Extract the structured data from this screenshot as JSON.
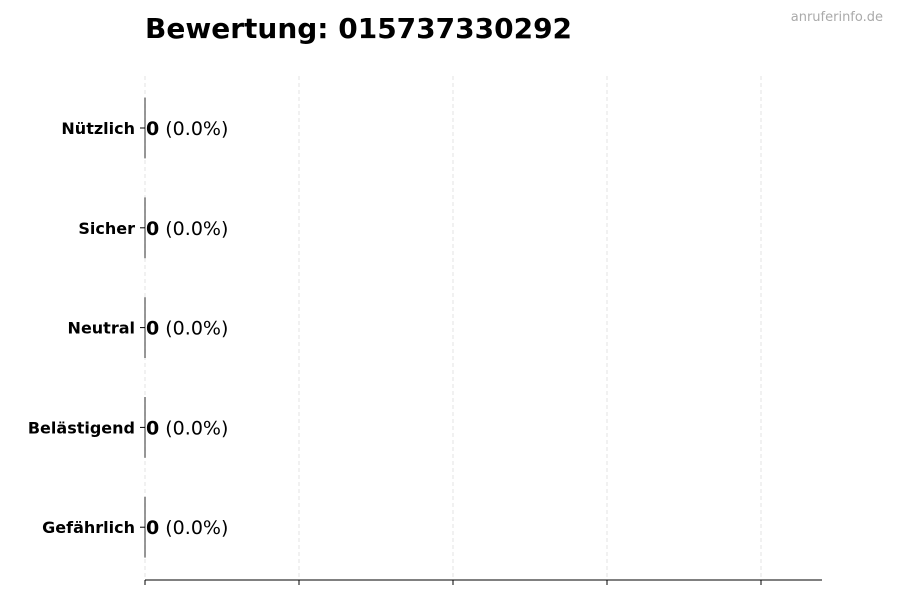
{
  "watermark": "anruferinfo.de",
  "chart_data": {
    "type": "bar",
    "orientation": "horizontal",
    "title": "Bewertung: 015737330292",
    "categories": [
      "Nützlich",
      "Sicher",
      "Neutral",
      "Belästigend",
      "Gefährlich"
    ],
    "values": [
      0,
      0,
      0,
      0,
      0
    ],
    "data_labels": [
      {
        "count": "0",
        "percent": "(0.0%)"
      },
      {
        "count": "0",
        "percent": "(0.0%)"
      },
      {
        "count": "0",
        "percent": "(0.0%)"
      },
      {
        "count": "0",
        "percent": "(0.0%)"
      },
      {
        "count": "0",
        "percent": "(0.0%)"
      }
    ],
    "xlabel": "",
    "ylabel": "",
    "x_tick_labels_shown": false,
    "x_gridlines": 5,
    "grid": "x, dashed",
    "legend": "none",
    "colors": {
      "bar_edge": "#000000",
      "grid": "#dddddd",
      "axis": "#000000",
      "watermark": "#aaaaaa"
    }
  }
}
